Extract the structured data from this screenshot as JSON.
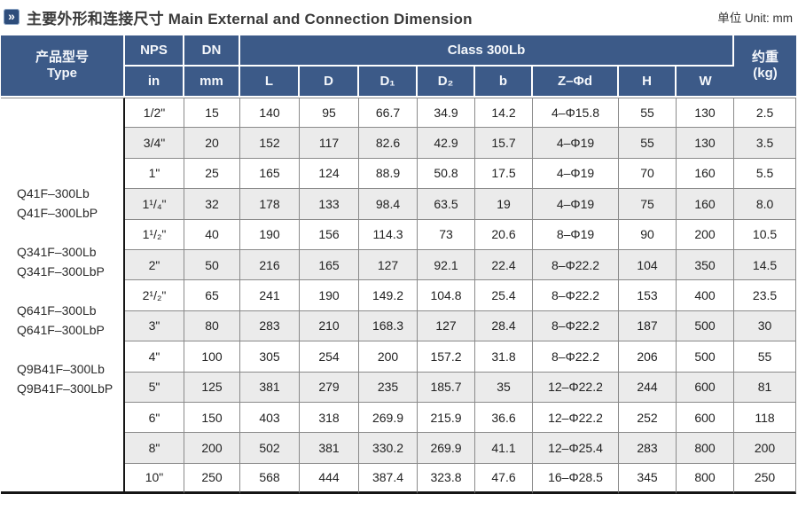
{
  "title": {
    "marker_glyph": "»",
    "zh": "主要外形和连接尺寸",
    "en": "Main External and Connection Dimension",
    "unit": "单位 Unit: mm"
  },
  "colors": {
    "header_blue": "#3c5a88",
    "row_alt_gray": "#ebebeb",
    "grid_gray": "#8a8a8a",
    "frame_black": "#151515"
  },
  "table": {
    "type_header_zh": "产品型号",
    "type_header_en": "Type",
    "nps_header": "NPS",
    "dn_header": "DN",
    "class_header": "Class 300Lb",
    "weight_header_zh": "约重",
    "weight_header_unit": "(kg)",
    "sub_headers": [
      "in",
      "mm",
      "L",
      "D",
      "D₁",
      "D₂",
      "b",
      "Z–Φd",
      "H",
      "W"
    ],
    "type_groups": [
      [
        "Q41F–300Lb",
        "Q41F–300LbP"
      ],
      [
        "Q341F–300Lb",
        "Q341F–300LbP"
      ],
      [
        "Q641F–300Lb",
        "Q641F–300LbP"
      ],
      [
        "Q9B41F–300Lb",
        "Q9B41F–300LbP"
      ]
    ],
    "rows": [
      {
        "nps": "1/2\"",
        "dn": "15",
        "l": "140",
        "d": "95",
        "d1": "66.7",
        "d2": "34.9",
        "b": "14.2",
        "z_phid": "4–Φ15.8",
        "h": "55",
        "w": "130",
        "weight": "2.5"
      },
      {
        "nps": "3/4\"",
        "dn": "20",
        "l": "152",
        "d": "117",
        "d1": "82.6",
        "d2": "42.9",
        "b": "15.7",
        "z_phid": "4–Φ19",
        "h": "55",
        "w": "130",
        "weight": "3.5"
      },
      {
        "nps": "1\"",
        "dn": "25",
        "l": "165",
        "d": "124",
        "d1": "88.9",
        "d2": "50.8",
        "b": "17.5",
        "z_phid": "4–Φ19",
        "h": "70",
        "w": "160",
        "weight": "5.5"
      },
      {
        "nps": "1¹/₄\"",
        "dn": "32",
        "l": "178",
        "d": "133",
        "d1": "98.4",
        "d2": "63.5",
        "b": "19",
        "z_phid": "4–Φ19",
        "h": "75",
        "w": "160",
        "weight": "8.0"
      },
      {
        "nps": "1¹/₂\"",
        "dn": "40",
        "l": "190",
        "d": "156",
        "d1": "114.3",
        "d2": "73",
        "b": "20.6",
        "z_phid": "8–Φ19",
        "h": "90",
        "w": "200",
        "weight": "10.5"
      },
      {
        "nps": "2\"",
        "dn": "50",
        "l": "216",
        "d": "165",
        "d1": "127",
        "d2": "92.1",
        "b": "22.4",
        "z_phid": "8–Φ22.2",
        "h": "104",
        "w": "350",
        "weight": "14.5"
      },
      {
        "nps": "2¹/₂\"",
        "dn": "65",
        "l": "241",
        "d": "190",
        "d1": "149.2",
        "d2": "104.8",
        "b": "25.4",
        "z_phid": "8–Φ22.2",
        "h": "153",
        "w": "400",
        "weight": "23.5"
      },
      {
        "nps": "3\"",
        "dn": "80",
        "l": "283",
        "d": "210",
        "d1": "168.3",
        "d2": "127",
        "b": "28.4",
        "z_phid": "8–Φ22.2",
        "h": "187",
        "w": "500",
        "weight": "30"
      },
      {
        "nps": "4\"",
        "dn": "100",
        "l": "305",
        "d": "254",
        "d1": "200",
        "d2": "157.2",
        "b": "31.8",
        "z_phid": "8–Φ22.2",
        "h": "206",
        "w": "500",
        "weight": "55"
      },
      {
        "nps": "5\"",
        "dn": "125",
        "l": "381",
        "d": "279",
        "d1": "235",
        "d2": "185.7",
        "b": "35",
        "z_phid": "12–Φ22.2",
        "h": "244",
        "w": "600",
        "weight": "81"
      },
      {
        "nps": "6\"",
        "dn": "150",
        "l": "403",
        "d": "318",
        "d1": "269.9",
        "d2": "215.9",
        "b": "36.6",
        "z_phid": "12–Φ22.2",
        "h": "252",
        "w": "600",
        "weight": "118"
      },
      {
        "nps": "8\"",
        "dn": "200",
        "l": "502",
        "d": "381",
        "d1": "330.2",
        "d2": "269.9",
        "b": "41.1",
        "z_phid": "12–Φ25.4",
        "h": "283",
        "w": "800",
        "weight": "200"
      },
      {
        "nps": "10\"",
        "dn": "250",
        "l": "568",
        "d": "444",
        "d1": "387.4",
        "d2": "323.8",
        "b": "47.6",
        "z_phid": "16–Φ28.5",
        "h": "345",
        "w": "800",
        "weight": "250"
      }
    ]
  }
}
